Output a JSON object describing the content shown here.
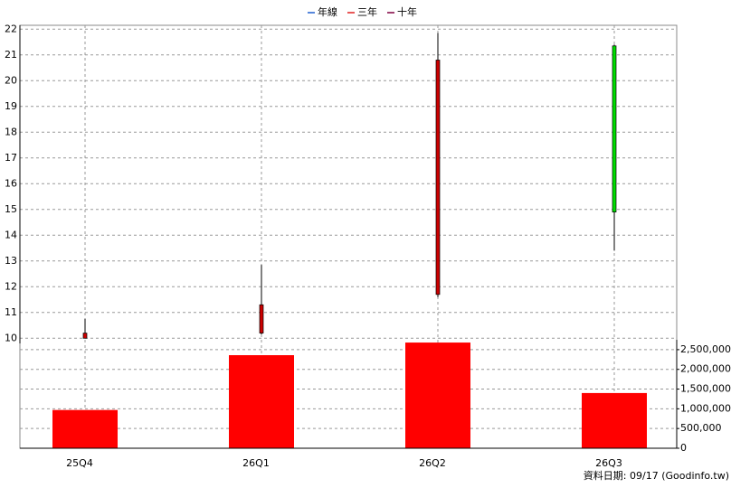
{
  "chart_data": {
    "type": "candlestick",
    "legend": [
      {
        "name": "年線",
        "color": "#1f5fd0"
      },
      {
        "name": "三年",
        "color": "#e02020"
      },
      {
        "name": "十年",
        "color": "#800040"
      }
    ],
    "categories": [
      "25Q4",
      "26Q1",
      "26Q2",
      "26Q3"
    ],
    "open": [
      10.0,
      10.2,
      11.7,
      21.35
    ],
    "high": [
      10.75,
      12.85,
      21.85,
      21.4
    ],
    "low": [
      10.0,
      10.15,
      11.6,
      13.4
    ],
    "close": [
      10.2,
      11.3,
      20.8,
      14.9
    ],
    "up_color": "#cc0000",
    "down_color": "#00dd00",
    "volume": [
      970000,
      2360000,
      2680000,
      1400000
    ],
    "volume_color": "#ff0000",
    "ylim": [
      9.8,
      22.15
    ],
    "yticks": [
      10,
      11,
      12,
      13,
      14,
      15,
      16,
      17,
      18,
      19,
      20,
      21,
      22
    ],
    "y2lim": [
      0,
      2750000
    ],
    "y2ticks": [
      0,
      {
        "value": 500000,
        "label": "500,000"
      },
      {
        "value": 1000000,
        "label": "1,000,000"
      },
      {
        "value": 1500000,
        "label": "1,500,000"
      },
      {
        "value": 2000000,
        "label": "2,000,000"
      },
      {
        "value": 2500000,
        "label": "2,500,000"
      }
    ],
    "grid": true,
    "footer": "資料日期: 09/17  (Goodinfo.tw)"
  }
}
